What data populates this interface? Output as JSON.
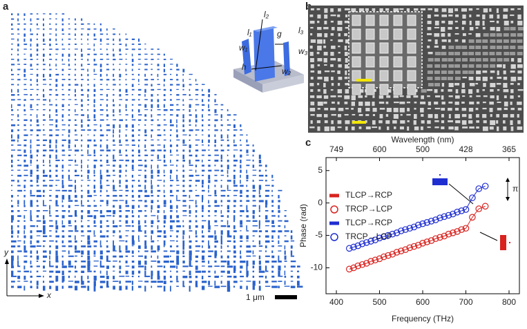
{
  "figure": {
    "panel_labels": [
      "a",
      "b",
      "c"
    ],
    "axis_y": "y",
    "axis_x": "x",
    "scale_bar": "1 μm",
    "inset_labels": [
      "l₁",
      "l₂",
      "l₃",
      "w₁",
      "w₂",
      "w₃",
      "g",
      "h"
    ]
  },
  "chart_data": {
    "type": "line",
    "xlabel": "Frequency (THz)",
    "ylabel": "Phase (rad)",
    "x2label": "Wavelength (nm)",
    "x": [
      430,
      440,
      450,
      460,
      470,
      480,
      490,
      500,
      510,
      520,
      530,
      540,
      550,
      560,
      570,
      580,
      590,
      600,
      610,
      620,
      630,
      640,
      650,
      660,
      670,
      680,
      690,
      700,
      715,
      730,
      745
    ],
    "series": [
      {
        "name": "TLCP→RCP",
        "color": "#d8231f",
        "marker": "line",
        "values": [
          -10.2,
          -10.0,
          -9.7,
          -9.5,
          -9.3,
          -9.0,
          -8.8,
          -8.6,
          -8.3,
          -8.1,
          -7.9,
          -7.6,
          -7.4,
          -7.2,
          -6.9,
          -6.7,
          -6.5,
          -6.2,
          -6.0,
          -5.8,
          -5.5,
          -5.3,
          -5.1,
          -4.8,
          -4.6,
          -4.4,
          -4.1,
          -3.9,
          -2.2,
          -0.9,
          -0.5
        ]
      },
      {
        "name": "TRCP→LCP",
        "color": "#d8231f",
        "marker": "circle",
        "values": [
          -10.2,
          -10.0,
          -9.7,
          -9.5,
          -9.3,
          -9.0,
          -8.8,
          -8.6,
          -8.3,
          -8.1,
          -7.9,
          -7.6,
          -7.4,
          -7.2,
          -6.9,
          -6.7,
          -6.5,
          -6.2,
          -6.0,
          -5.8,
          -5.5,
          -5.3,
          -5.1,
          -4.8,
          -4.6,
          -4.4,
          -4.1,
          -3.9,
          -2.2,
          -0.9,
          -0.5
        ]
      },
      {
        "name": "TLCP→RCP",
        "color": "#1f2ed0",
        "marker": "line",
        "values": [
          -7.0,
          -6.8,
          -6.6,
          -6.3,
          -6.1,
          -5.9,
          -5.7,
          -5.4,
          -5.2,
          -5.0,
          -4.8,
          -4.6,
          -4.3,
          -4.1,
          -3.9,
          -3.7,
          -3.4,
          -3.2,
          -3.0,
          -2.8,
          -2.6,
          -2.3,
          -2.1,
          -1.9,
          -1.7,
          -1.4,
          -1.2,
          -1.0,
          0.8,
          2.2,
          2.6
        ]
      },
      {
        "name": "TRCP→LCP",
        "color": "#1f2ed0",
        "marker": "circle",
        "values": [
          -7.0,
          -6.8,
          -6.6,
          -6.3,
          -6.1,
          -5.9,
          -5.7,
          -5.4,
          -5.2,
          -5.0,
          -4.8,
          -4.6,
          -4.3,
          -4.1,
          -3.9,
          -3.7,
          -3.4,
          -3.2,
          -3.0,
          -2.8,
          -2.6,
          -2.3,
          -2.1,
          -1.9,
          -1.7,
          -1.4,
          -1.2,
          -1.0,
          0.8,
          2.2,
          2.6
        ]
      }
    ],
    "xlim": [
      376,
      824
    ],
    "ylim": [
      -14,
      7
    ],
    "xticks": [
      400,
      500,
      600,
      700,
      800
    ],
    "yticks": [
      -10,
      -5,
      0,
      5
    ],
    "x2ticks": [
      749,
      600,
      500,
      428,
      365
    ],
    "annotation": "π"
  }
}
